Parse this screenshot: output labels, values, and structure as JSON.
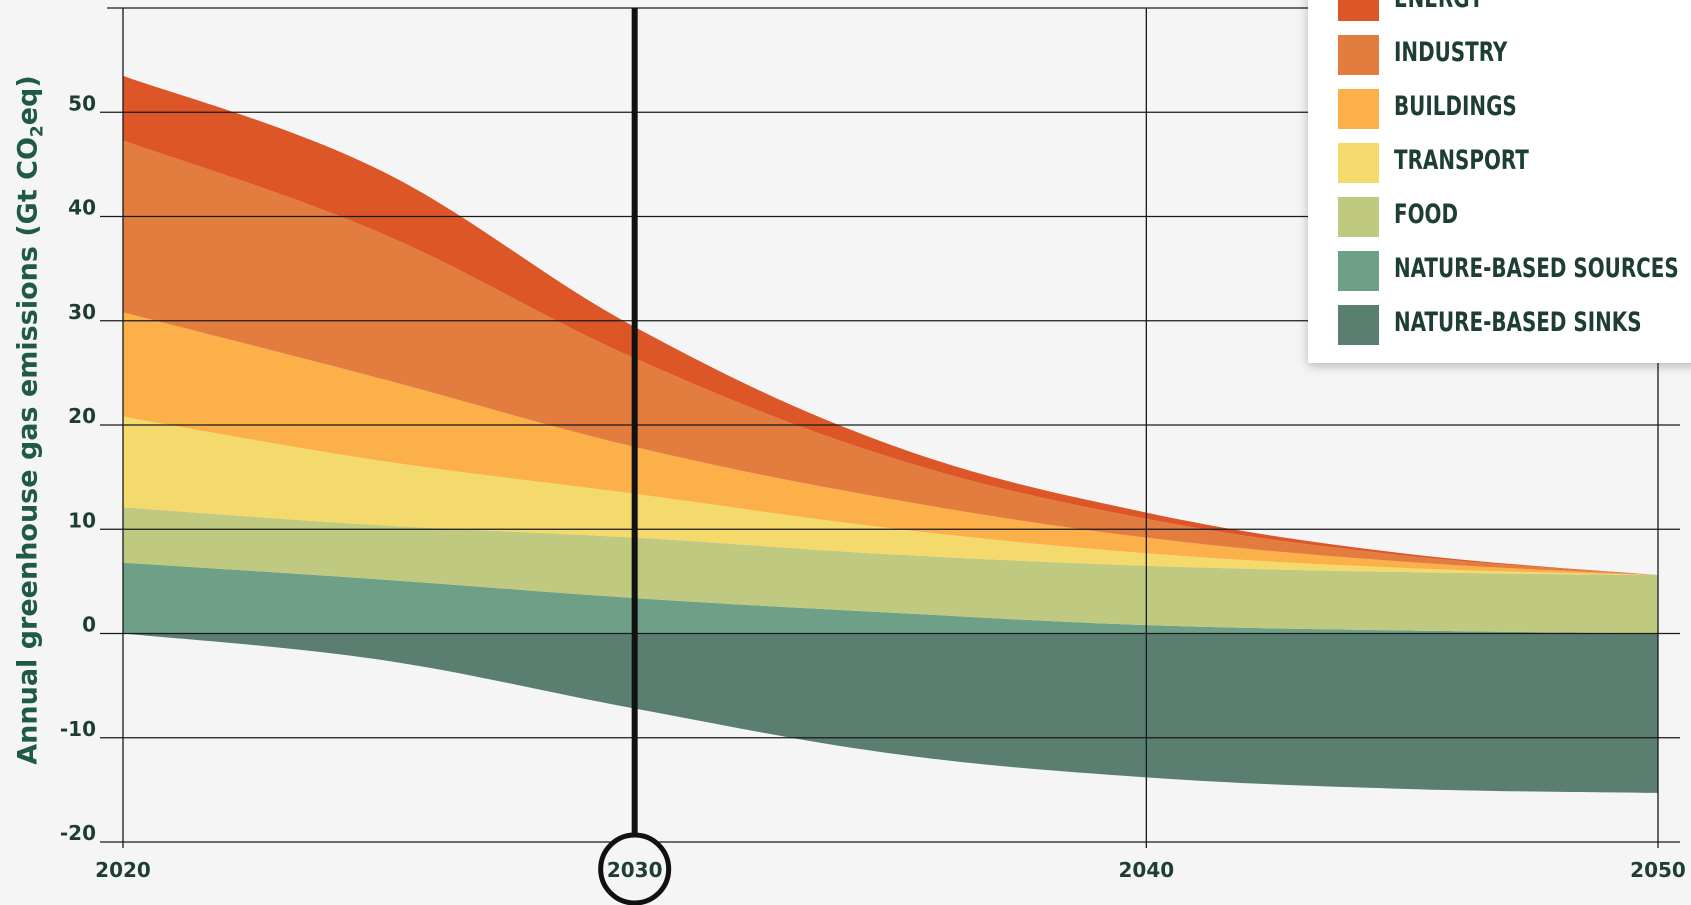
{
  "chart_data": {
    "type": "area",
    "stacked": true,
    "ylabel": "Annual greenhouse gas emissions (Gt CO2eq)",
    "ylabel_parts": {
      "before": "Annual greenhouse gas emissions (Gt CO",
      "sub": "2",
      "after": "eq)"
    },
    "ylim": [
      -20,
      60
    ],
    "yticks": [
      50,
      40,
      30,
      20,
      10,
      0,
      -10,
      -20
    ],
    "ytick_labels": [
      "50",
      "40",
      "30",
      "20",
      "10",
      "0",
      "-10",
      "-20"
    ],
    "xlim": [
      2020,
      2050
    ],
    "xticks": [
      2020,
      2030,
      2040,
      2050
    ],
    "xtick_labels": [
      "2020",
      "2030",
      "2040",
      "2050"
    ],
    "highlight_year": 2030,
    "highlight_label": "2030",
    "grid": true,
    "legend_position": "top-right",
    "x": [
      2020,
      2025,
      2030,
      2035,
      2040,
      2045,
      2050
    ],
    "series": [
      {
        "name": "NATURE-BASED SINKS",
        "color": "#5a7f70",
        "values": [
          0,
          -2.5,
          -7.2,
          -11.5,
          -13.8,
          -14.9,
          -15.3
        ]
      },
      {
        "name": "NATURE-BASED SOURCES",
        "color": "#6ea088",
        "values": [
          6.8,
          5.2,
          3.4,
          2.0,
          0.8,
          0.3,
          0.0
        ]
      },
      {
        "name": "FOOD",
        "color": "#bfca80",
        "values": [
          5.3,
          5.2,
          5.8,
          5.6,
          5.7,
          5.6,
          5.6
        ]
      },
      {
        "name": "TRANSPORT",
        "color": "#f4da6c",
        "values": [
          8.7,
          6.2,
          4.2,
          2.5,
          1.2,
          0.4,
          0.0
        ]
      },
      {
        "name": "BUILDINGS",
        "color": "#fbb04a",
        "values": [
          10.0,
          7.9,
          4.5,
          2.8,
          1.5,
          0.6,
          0.0
        ]
      },
      {
        "name": "INDUSTRY",
        "color": "#e27d3f",
        "values": [
          16.5,
          14.0,
          8.5,
          4.0,
          1.8,
          0.6,
          0.0
        ]
      },
      {
        "name": "ENERGY",
        "color": "#dd5628",
        "values": [
          6.2,
          6.0,
          3.0,
          1.2,
          0.6,
          0.2,
          0.0
        ]
      }
    ],
    "legend_order": [
      "ENERGY",
      "INDUSTRY",
      "BUILDINGS",
      "TRANSPORT",
      "FOOD",
      "NATURE-BASED SOURCES",
      "NATURE-BASED SINKS"
    ]
  }
}
